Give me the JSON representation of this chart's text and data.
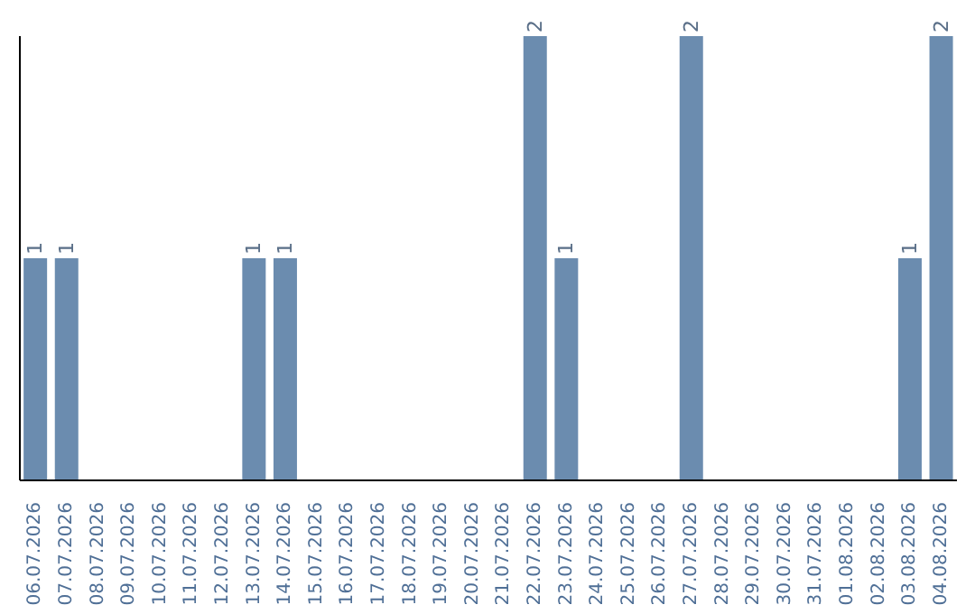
{
  "chart_data": {
    "type": "bar",
    "categories": [
      "06.07.2026",
      "07.07.2026",
      "08.07.2026",
      "09.07.2026",
      "10.07.2026",
      "11.07.2026",
      "12.07.2026",
      "13.07.2026",
      "14.07.2026",
      "15.07.2026",
      "16.07.2026",
      "17.07.2026",
      "18.07.2026",
      "19.07.2026",
      "20.07.2026",
      "21.07.2026",
      "22.07.2026",
      "23.07.2026",
      "24.07.2026",
      "25.07.2026",
      "26.07.2026",
      "27.07.2026",
      "28.07.2026",
      "29.07.2026",
      "30.07.2026",
      "31.07.2026",
      "01.08.2026",
      "02.08.2026",
      "03.08.2026",
      "04.08.2026"
    ],
    "values": [
      1,
      1,
      0,
      0,
      0,
      0,
      0,
      1,
      1,
      0,
      0,
      0,
      0,
      0,
      0,
      0,
      2,
      1,
      0,
      0,
      0,
      2,
      0,
      0,
      0,
      0,
      0,
      0,
      1,
      2
    ],
    "value_labels": [
      "1",
      "1",
      null,
      null,
      null,
      null,
      null,
      "1",
      "1",
      null,
      null,
      null,
      null,
      null,
      null,
      null,
      "2",
      "1",
      null,
      null,
      null,
      "2",
      null,
      null,
      null,
      null,
      null,
      null,
      "1",
      "2"
    ],
    "color": "#6b8caf",
    "ylim": [
      0,
      2
    ],
    "grid": false,
    "legend": false
  }
}
